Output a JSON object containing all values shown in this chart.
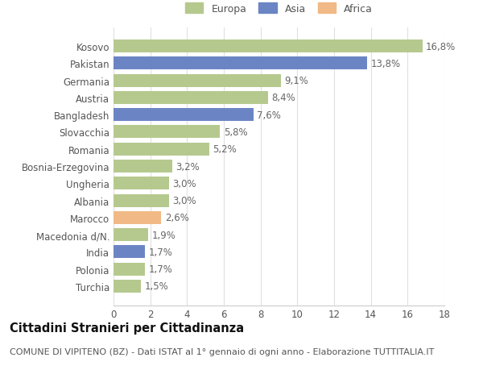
{
  "categories": [
    "Turchia",
    "Polonia",
    "India",
    "Macedonia d/N.",
    "Marocco",
    "Albania",
    "Ungheria",
    "Bosnia-Erzegovina",
    "Romania",
    "Slovacchia",
    "Bangladesh",
    "Austria",
    "Germania",
    "Pakistan",
    "Kosovo"
  ],
  "values": [
    1.5,
    1.7,
    1.7,
    1.9,
    2.6,
    3.0,
    3.0,
    3.2,
    5.2,
    5.8,
    7.6,
    8.4,
    9.1,
    13.8,
    16.8
  ],
  "colors": [
    "#b5c98e",
    "#b5c98e",
    "#6b85c4",
    "#b5c98e",
    "#f0b986",
    "#b5c98e",
    "#b5c98e",
    "#b5c98e",
    "#b5c98e",
    "#b5c98e",
    "#6b85c4",
    "#b5c98e",
    "#b5c98e",
    "#6b85c4",
    "#b5c98e"
  ],
  "labels": [
    "1,5%",
    "1,7%",
    "1,7%",
    "1,9%",
    "2,6%",
    "3,0%",
    "3,0%",
    "3,2%",
    "5,2%",
    "5,8%",
    "7,6%",
    "8,4%",
    "9,1%",
    "13,8%",
    "16,8%"
  ],
  "legend": [
    {
      "label": "Europa",
      "color": "#b5c98e"
    },
    {
      "label": "Asia",
      "color": "#6b85c4"
    },
    {
      "label": "Africa",
      "color": "#f0b986"
    }
  ],
  "xlim": [
    0,
    18
  ],
  "xticks": [
    0,
    2,
    4,
    6,
    8,
    10,
    12,
    14,
    16,
    18
  ],
  "title": "Cittadini Stranieri per Cittadinanza",
  "subtitle": "COMUNE DI VIPITENO (BZ) - Dati ISTAT al 1° gennaio di ogni anno - Elaborazione TUTTITALIA.IT",
  "background_color": "#ffffff",
  "grid_color": "#e0e0e0",
  "bar_height": 0.75,
  "label_fontsize": 8.5,
  "tick_fontsize": 8.5,
  "title_fontsize": 10.5,
  "subtitle_fontsize": 8.0
}
